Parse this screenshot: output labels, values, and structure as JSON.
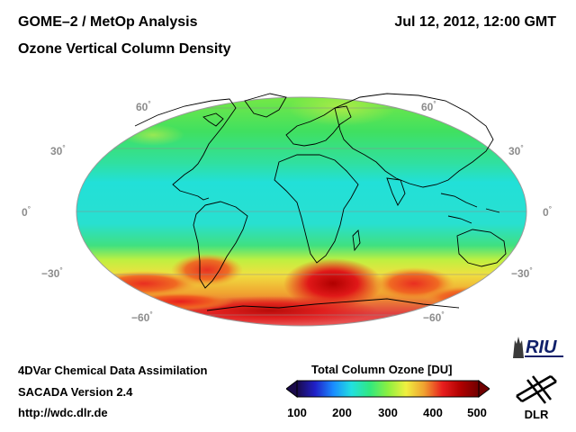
{
  "header": {
    "title": "GOME–2 / MetOp Analysis",
    "subtitle": "Ozone Vertical Column Density",
    "datetime": "Jul 12, 2012, 12:00 GMT"
  },
  "map": {
    "projection": "mollweide",
    "lat_labels_left": [
      "60",
      "30",
      "0",
      "−30",
      "−60"
    ],
    "lat_labels_right": [
      "60",
      "30",
      "0",
      "−30",
      "−60"
    ],
    "degree_symbol": "°",
    "colors": {
      "graticule": "#808080",
      "coast": "#000000"
    }
  },
  "footer": {
    "line1": "4DVar Chemical Data Assimilation",
    "line2": "SACADA Version 2.4",
    "line3": "http://wdc.dlr.de"
  },
  "colorbar": {
    "title": "Total Column Ozone [DU]",
    "ticks": [
      "100",
      "200",
      "300",
      "400",
      "500"
    ],
    "min": 100,
    "max": 500,
    "stops": [
      "#1a0a4a",
      "#2020c8",
      "#1a8cff",
      "#22e0e0",
      "#30e880",
      "#8cf040",
      "#f0f040",
      "#f0a030",
      "#e81e1e",
      "#b00000",
      "#700000"
    ]
  },
  "logos": {
    "riu": "RIU",
    "dlr": "DLR"
  }
}
